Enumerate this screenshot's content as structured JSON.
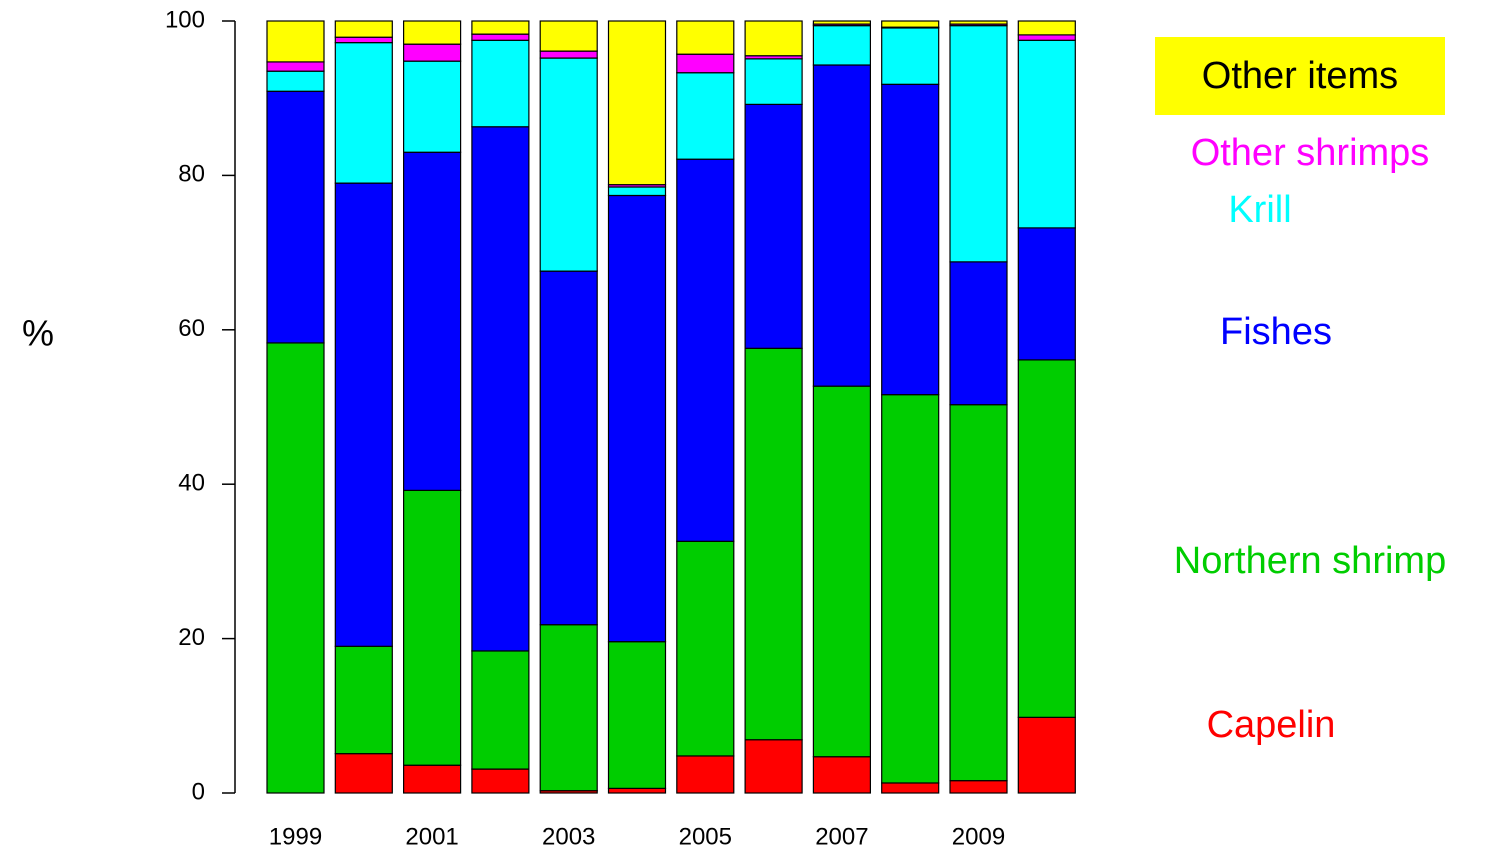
{
  "chart_data": {
    "type": "stacked_bar",
    "ylabel": "%",
    "categories": [
      "1999",
      null,
      "2001",
      null,
      "2003",
      null,
      "2005",
      null,
      "2007",
      null,
      "2009",
      null
    ],
    "series": [
      {
        "name": "Capelin",
        "color": "#ff0000",
        "values": [
          0,
          5.1,
          3.6,
          3.1,
          0.3,
          0.6,
          4.8,
          6.9,
          4.7,
          1.3,
          1.6,
          9.8
        ]
      },
      {
        "name": "Northern shrimp",
        "color": "#00cd00",
        "values": [
          58.3,
          13.9,
          35.6,
          15.3,
          21.5,
          19.0,
          27.8,
          50.7,
          48.0,
          50.3,
          48.7,
          46.3
        ]
      },
      {
        "name": "Fishes",
        "color": "#0000ff",
        "values": [
          32.6,
          60.0,
          43.8,
          67.9,
          45.8,
          57.8,
          49.5,
          31.6,
          41.6,
          40.2,
          18.5,
          17.1
        ]
      },
      {
        "name": "Krill",
        "color": "#00ffff",
        "values": [
          2.6,
          18.2,
          11.8,
          11.2,
          27.6,
          1.1,
          11.2,
          5.9,
          5.1,
          7.3,
          30.6,
          24.3
        ]
      },
      {
        "name": "Other shrimps",
        "color": "#ff00ff",
        "values": [
          1.2,
          0.7,
          2.2,
          0.8,
          0.9,
          0.3,
          2.4,
          0.4,
          0.2,
          0.1,
          0.2,
          0.7
        ]
      },
      {
        "name": "Other items",
        "color": "#ffff00",
        "values": [
          5.3,
          2.1,
          3.0,
          1.7,
          3.9,
          21.2,
          4.3,
          4.5,
          0.4,
          0.8,
          0.4,
          1.8
        ]
      }
    ],
    "ylim": [
      0,
      100
    ],
    "yticks": [
      0,
      20,
      40,
      60,
      80,
      100
    ]
  }
}
